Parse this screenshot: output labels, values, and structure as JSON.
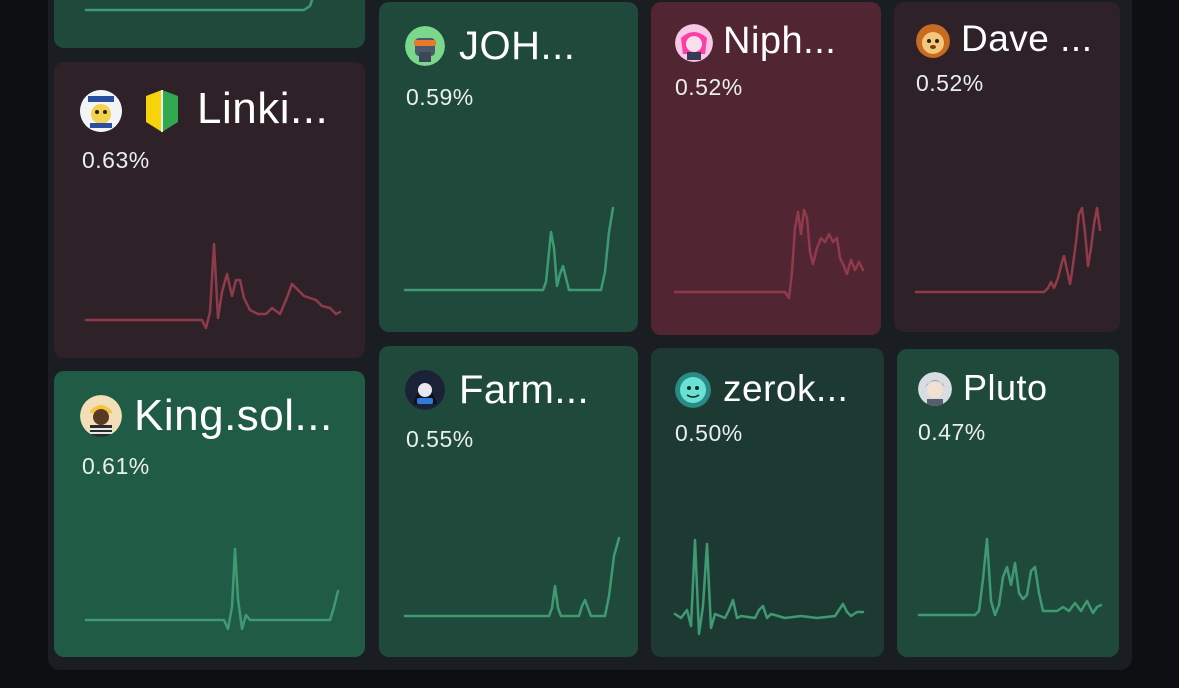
{
  "colors": {
    "up_line": "#3f9a73",
    "down_line": "#8f3b4b",
    "up_strong": "#1f5b45",
    "up_mid": "#1f4a3b",
    "up_dark": "#1d3a32",
    "down_strong": "#512632",
    "down_dark": "#2e2228"
  },
  "tiles": [
    {
      "id": "linki",
      "name": "Linki...",
      "pct": "0.63%",
      "trend": "down",
      "avatar_icon": "clipart-avatar-icon",
      "badge_icon": "beginner-leaf-icon"
    },
    {
      "id": "joh",
      "name": "JOH...",
      "pct": "0.59%",
      "trend": "up",
      "avatar_icon": "robot-avatar-icon"
    },
    {
      "id": "niph",
      "name": "Niph...",
      "pct": "0.52%",
      "trend": "down",
      "avatar_icon": "anime-avatar-icon"
    },
    {
      "id": "dave",
      "name": "Dave ...",
      "pct": "0.52%",
      "trend": "down",
      "avatar_icon": "dog-avatar-icon"
    },
    {
      "id": "king",
      "name": "King.sol...",
      "pct": "0.61%",
      "trend": "up",
      "avatar_icon": "person-cap-avatar-icon"
    },
    {
      "id": "farm",
      "name": "Farm...",
      "pct": "0.55%",
      "trend": "up",
      "avatar_icon": "hooded-avatar-icon"
    },
    {
      "id": "zerok",
      "name": "zerok...",
      "pct": "0.50%",
      "trend": "up",
      "avatar_icon": "cyan-face-avatar-icon"
    },
    {
      "id": "pluto",
      "name": "Pluto",
      "pct": "0.47%",
      "trend": "up",
      "avatar_icon": "grey-hair-avatar-icon"
    }
  ]
}
